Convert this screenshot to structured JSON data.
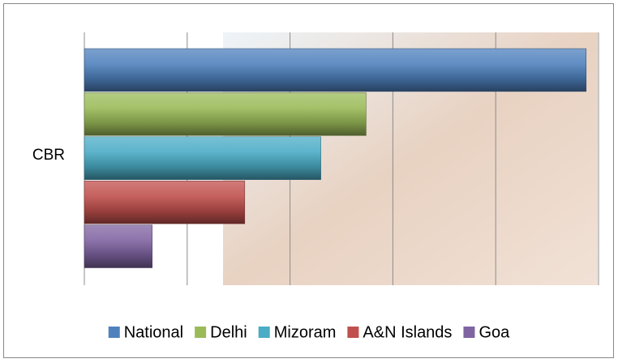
{
  "chart_data": {
    "type": "bar",
    "orientation": "horizontal",
    "categories": [
      "CBR"
    ],
    "series": [
      {
        "name": "National",
        "color": "#4f81bd",
        "values": [
          24.4
        ]
      },
      {
        "name": "Delhi",
        "color": "#9bbb59",
        "values": [
          13.7
        ]
      },
      {
        "name": "Mizoram",
        "color": "#4bacc6",
        "values": [
          11.5
        ]
      },
      {
        "name": "A&N Islands",
        "color": "#c0504d",
        "values": [
          7.8
        ]
      },
      {
        "name": "Goa",
        "color": "#8064a2",
        "values": [
          3.3
        ]
      }
    ],
    "xlim": [
      0,
      25
    ],
    "xticks": [
      0,
      5,
      10,
      15,
      20,
      25
    ],
    "grid": true,
    "legend": "bottom"
  }
}
